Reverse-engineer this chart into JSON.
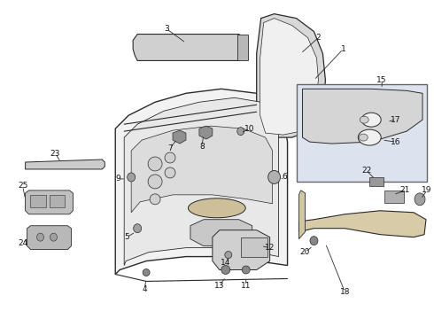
{
  "background_color": "#ffffff",
  "figure_width": 4.9,
  "figure_height": 3.6,
  "dpi": 100,
  "line_color": "#2a2a2a",
  "box_fill": "#dde3ee",
  "part_fill": "#e8e8e8",
  "trim_fill": "#c8c8c8"
}
